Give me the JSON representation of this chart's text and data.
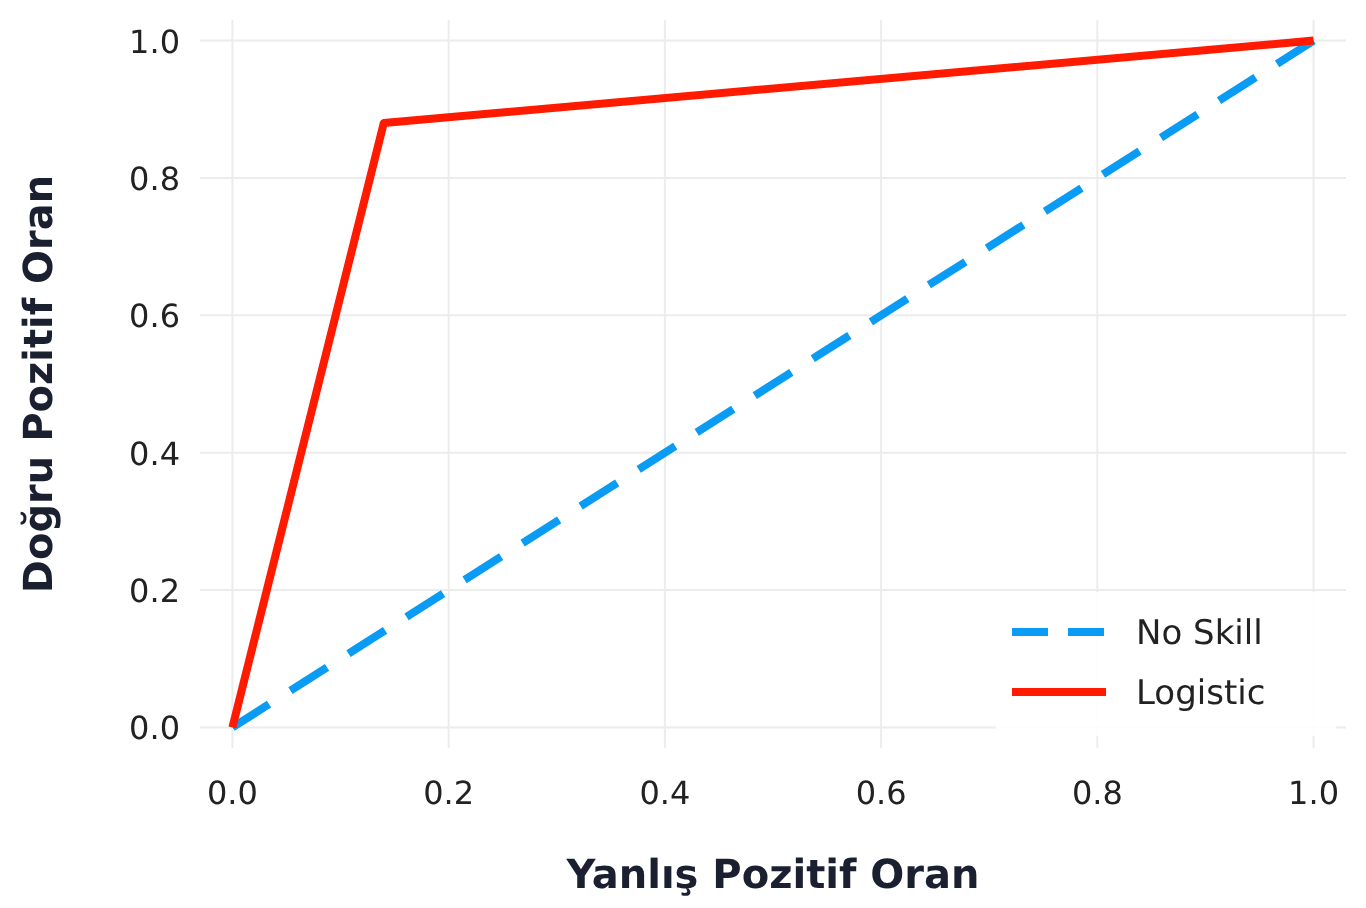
{
  "chart_data": {
    "type": "line",
    "xlabel": "Yanlış Pozitif Oran",
    "ylabel": "Doğru Pozitif Oran",
    "xlim": [
      -0.03,
      1.03
    ],
    "ylim": [
      -0.03,
      1.03
    ],
    "xticks": [
      {
        "value": 0,
        "label": "0.0"
      },
      0.2,
      0.4,
      0.6,
      0.8,
      {
        "value": 1,
        "label": "1.0"
      }
    ],
    "yticks": [
      {
        "value": 0,
        "label": "0.0"
      },
      0.2,
      0.4,
      0.6,
      0.8,
      {
        "value": 1,
        "label": "1.0"
      }
    ],
    "series": [
      {
        "name": "No Skill",
        "color": "#0a9cf5",
        "x": [
          0,
          1
        ],
        "values": [
          0,
          1
        ],
        "line_style": "dashed"
      },
      {
        "name": "Logistic",
        "color": "#ff1a00",
        "x": [
          0,
          0.14,
          1
        ],
        "values": [
          0,
          0.88,
          1
        ],
        "line_style": "solid"
      }
    ],
    "grid": true,
    "legend": "bottom right"
  }
}
